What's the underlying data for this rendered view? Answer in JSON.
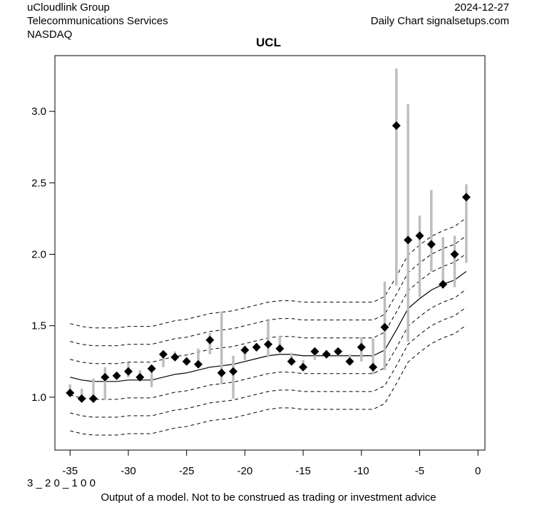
{
  "header": {
    "company": "uCloudlink Group",
    "sector": "Telecommunications Services",
    "exchange": "NASDAQ",
    "date": "2024-12-27",
    "source": "Daily Chart signalsetups.com"
  },
  "footer": {
    "code": "3 _ 2 0 _ 1 0 0",
    "disclaimer": "Output of a model. Not to be construed as trading or investment advice"
  },
  "colors": {
    "bar": "#bebebe",
    "point": "#000000",
    "line": "#000000"
  },
  "chart_data": {
    "type": "line",
    "title": "UCL",
    "xlabel": "",
    "ylabel": "",
    "xlim": [
      -36.3,
      0.6
    ],
    "ylim": [
      0.63,
      3.39
    ],
    "xticks": [
      -35,
      -30,
      -25,
      -20,
      -15,
      -10,
      -5,
      0
    ],
    "yticks": [
      1.0,
      1.5,
      2.0,
      2.5,
      3.0
    ],
    "grid": false,
    "x": [
      -35,
      -34,
      -33,
      -32,
      -31,
      -30,
      -29,
      -28,
      -27,
      -26,
      -25,
      -24,
      -23,
      -22,
      -21,
      -20,
      -19,
      -18,
      -17,
      -16,
      -15,
      -14,
      -13,
      -12,
      -11,
      -10,
      -9,
      -8,
      -7,
      -6,
      -5,
      -4,
      -3,
      -2,
      -1
    ],
    "close": [
      1.03,
      0.99,
      0.99,
      1.14,
      1.15,
      1.18,
      1.14,
      1.2,
      1.3,
      1.28,
      1.25,
      1.23,
      1.4,
      1.17,
      1.18,
      1.33,
      1.35,
      1.37,
      1.34,
      1.25,
      1.21,
      1.32,
      1.3,
      1.32,
      1.25,
      1.35,
      1.21,
      1.49,
      2.9,
      2.1,
      2.13,
      2.07,
      1.79,
      2.0,
      2.4
    ],
    "high": [
      1.09,
      1.06,
      1.13,
      1.21,
      1.16,
      1.24,
      1.19,
      1.2,
      1.32,
      1.32,
      1.28,
      1.34,
      1.45,
      1.6,
      1.29,
      1.36,
      1.38,
      1.54,
      1.43,
      1.31,
      1.26,
      1.33,
      1.33,
      1.33,
      1.3,
      1.42,
      1.41,
      1.81,
      3.3,
      3.05,
      2.27,
      2.45,
      2.12,
      2.13,
      2.49
    ],
    "low": [
      1.01,
      0.97,
      0.98,
      0.98,
      1.13,
      1.14,
      1.12,
      1.07,
      1.21,
      1.27,
      1.24,
      1.24,
      1.3,
      1.09,
      0.99,
      1.26,
      1.32,
      1.28,
      1.32,
      1.24,
      1.2,
      1.26,
      1.28,
      1.29,
      1.24,
      1.25,
      1.16,
      1.19,
      1.78,
      1.39,
      1.7,
      1.88,
      1.76,
      1.77,
      1.94
    ],
    "model": [
      1.14,
      1.12,
      1.11,
      1.11,
      1.11,
      1.12,
      1.12,
      1.12,
      1.14,
      1.16,
      1.17,
      1.19,
      1.21,
      1.22,
      1.23,
      1.25,
      1.27,
      1.29,
      1.3,
      1.3,
      1.29,
      1.29,
      1.29,
      1.29,
      1.29,
      1.29,
      1.29,
      1.33,
      1.47,
      1.62,
      1.69,
      1.75,
      1.79,
      1.82,
      1.88
    ],
    "band_offsets": [
      -0.375,
      -0.25,
      -0.125,
      0.125,
      0.25,
      0.375
    ]
  }
}
